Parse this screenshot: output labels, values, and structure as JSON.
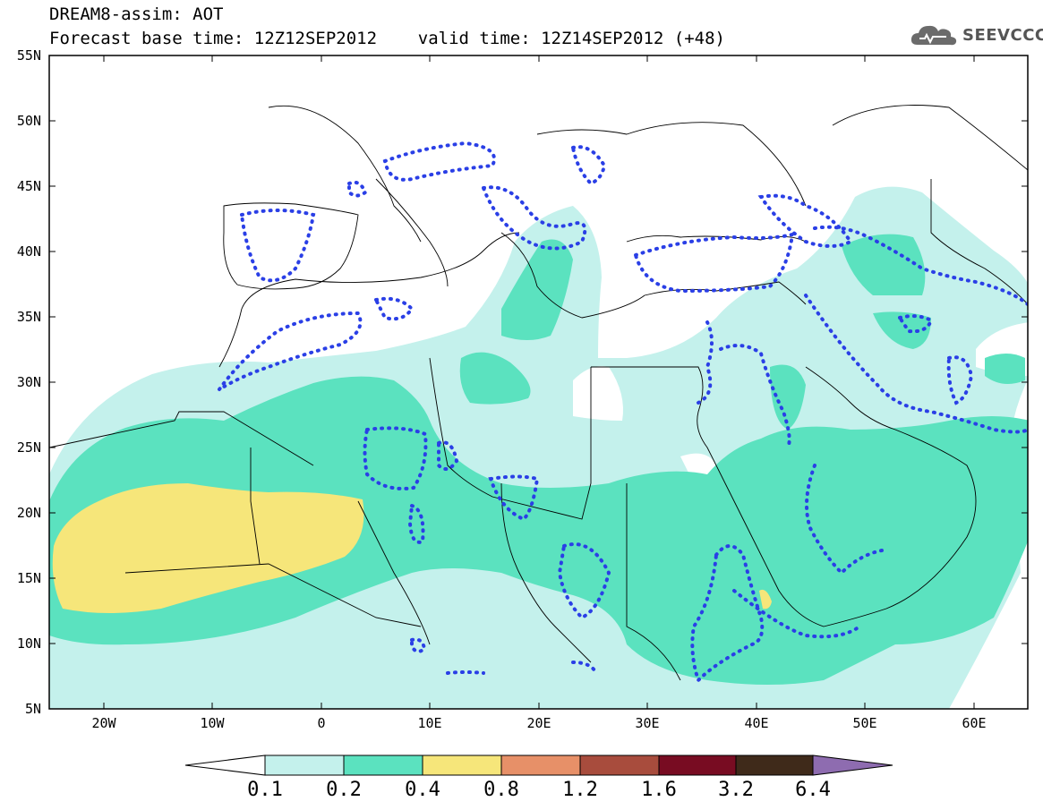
{
  "header": {
    "line1": "DREAM8-assim: AOT",
    "line2": "Forecast base time: 12Z12SEP2012    valid time: 12Z14SEP2012 (+48)"
  },
  "logo": {
    "text": "SEEVCCC",
    "icon": "cloud-logo-icon"
  },
  "map": {
    "extent": {
      "lon": [
        -25,
        65
      ],
      "lat": [
        5,
        55
      ]
    },
    "lat_labels": [
      "55N",
      "50N",
      "45N",
      "40N",
      "35N",
      "30N",
      "25N",
      "20N",
      "15N",
      "10N",
      "5N"
    ],
    "lon_labels": [
      "20W",
      "10W",
      "0",
      "10E",
      "20E",
      "30E",
      "40E",
      "50E",
      "60E"
    ],
    "field": "Aerosol optical thickness (AOT)"
  },
  "colorbar": {
    "levels": [
      "0.1",
      "0.2",
      "0.4",
      "0.8",
      "1.2",
      "1.6",
      "3.2",
      "6.4"
    ],
    "colors": [
      "#ffffff",
      "#c4f1ec",
      "#5be2bf",
      "#f6e67a",
      "#e79068",
      "#a84c3d",
      "#780c22",
      "#3f2a1a",
      "#8e6cb0"
    ]
  }
}
